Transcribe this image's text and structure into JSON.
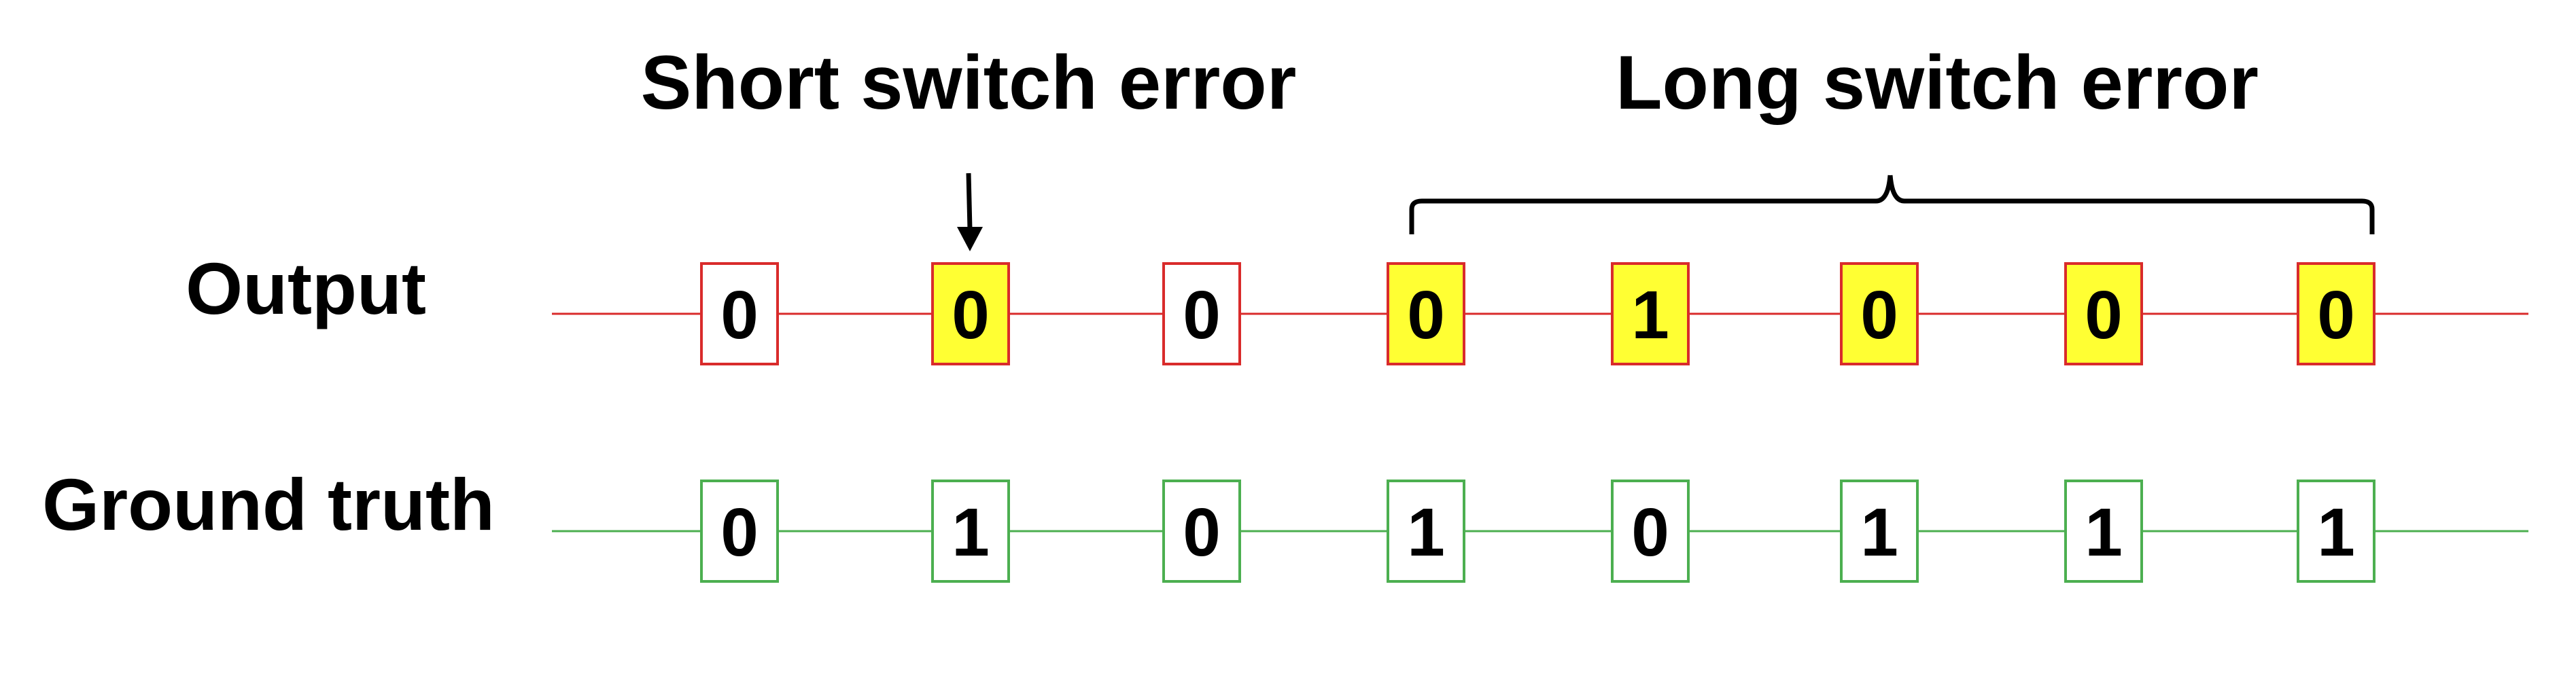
{
  "annotations": {
    "short_switch_error": "Short switch error",
    "long_switch_error": "Long switch error"
  },
  "rows": [
    {
      "label": "Output",
      "color": "#d92b2b",
      "values": [
        "0",
        "0",
        "0",
        "0",
        "1",
        "0",
        "0",
        "0"
      ],
      "highlighted": [
        false,
        true,
        false,
        true,
        true,
        true,
        true,
        true
      ]
    },
    {
      "label": "Ground truth",
      "color": "#4caf50",
      "values": [
        "0",
        "1",
        "0",
        "1",
        "0",
        "1",
        "1",
        "1"
      ],
      "highlighted": [
        false,
        false,
        false,
        false,
        false,
        false,
        false,
        false
      ]
    }
  ],
  "colors": {
    "highlight_fill": "#ffff33",
    "text": "#000000",
    "background": "#ffffff"
  },
  "icons": {
    "short_error_marker": "down-arrow-icon",
    "long_error_marker": "curly-brace-icon"
  }
}
